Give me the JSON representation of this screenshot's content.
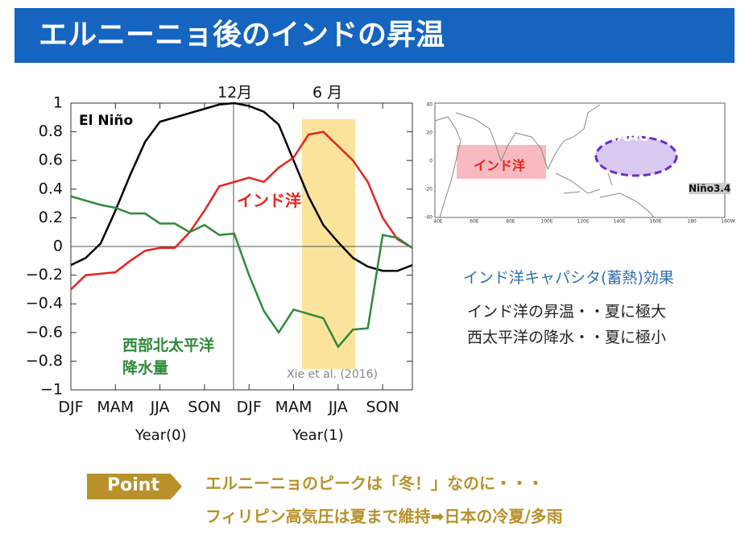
{
  "header": {
    "title": "エルニーニョ後のインドの昇温"
  },
  "chart_data": {
    "type": "line",
    "x": [
      0,
      1,
      2,
      3,
      4,
      5,
      6,
      7,
      8,
      9,
      10,
      11,
      12,
      13,
      14,
      15,
      16,
      17,
      18,
      19,
      20,
      21,
      22,
      23
    ],
    "series": [
      {
        "name": "El Niño",
        "color": "#000000",
        "values": [
          -0.13,
          -0.08,
          0.02,
          0.25,
          0.5,
          0.73,
          0.87,
          0.9,
          0.93,
          0.96,
          0.99,
          1.0,
          0.98,
          0.94,
          0.85,
          0.6,
          0.35,
          0.15,
          0.03,
          -0.08,
          -0.14,
          -0.17,
          -0.17,
          -0.13
        ]
      },
      {
        "name": "インド洋",
        "color": "#e8231f",
        "values": [
          -0.3,
          -0.2,
          -0.19,
          -0.18,
          -0.1,
          -0.03,
          -0.01,
          -0.01,
          0.1,
          0.25,
          0.42,
          0.45,
          0.48,
          0.45,
          0.55,
          0.62,
          0.78,
          0.8,
          0.7,
          0.6,
          0.45,
          0.2,
          0.05,
          -0.01
        ]
      },
      {
        "name": "西部北太平洋降水量",
        "color": "#2e8b3a",
        "values": [
          0.35,
          0.32,
          0.29,
          0.27,
          0.23,
          0.23,
          0.16,
          0.16,
          0.1,
          0.15,
          0.08,
          0.09,
          -0.2,
          -0.45,
          -0.6,
          -0.44,
          -0.47,
          -0.5,
          -0.7,
          -0.58,
          -0.57,
          0.08,
          0.06,
          -0.01
        ]
      }
    ],
    "xlim": [
      0,
      23
    ],
    "xticks": [
      {
        "value": 0,
        "label": "DJF"
      },
      {
        "value": 3,
        "label": "MAM"
      },
      {
        "value": 6,
        "label": "JJA"
      },
      {
        "value": 9,
        "label": "SON"
      },
      {
        "value": 12,
        "label": "DJF"
      },
      {
        "value": 15,
        "label": "MAM"
      },
      {
        "value": 18,
        "label": "JJA"
      },
      {
        "value": 21,
        "label": "SON"
      }
    ],
    "ylim": [
      -1,
      1
    ],
    "yticks": [
      1,
      0.8,
      0.6,
      0.4,
      0.2,
      0,
      {
        "value": -0.2,
        "label": "−0.2"
      },
      {
        "value": -0.4,
        "label": "−0.4"
      },
      {
        "value": -0.6,
        "label": "−0.6"
      },
      {
        "value": -0.8,
        "label": "−0.8"
      },
      {
        "value": -1,
        "label": "−1"
      }
    ],
    "annotations": [
      "12月",
      "6 月",
      "Year(0)",
      "Year(1)",
      "Xie et al. (2016)"
    ]
  },
  "map": {
    "labels": [
      "AAC",
      "インド洋",
      "Niño3.4"
    ],
    "lat_ticks": [
      "40",
      "20",
      "0",
      "-20",
      "-40"
    ],
    "lon_ticks": [
      "40E",
      "60E",
      "80E",
      "100E",
      "120E",
      "140E",
      "160E",
      "180",
      "160W"
    ]
  },
  "notes": {
    "heading": "インド洋キャパシタ(蓄熱)効果",
    "lines": [
      "インド洋の昇温・・夏に極大",
      "西太平洋の降水・・夏に極小"
    ]
  },
  "point": {
    "badge": "Point",
    "lines": [
      "エルニーニョのピークは「冬！」なのに・・・",
      "フィリピン高気圧は夏まで維持➡日本の冷夏/多雨"
    ]
  }
}
